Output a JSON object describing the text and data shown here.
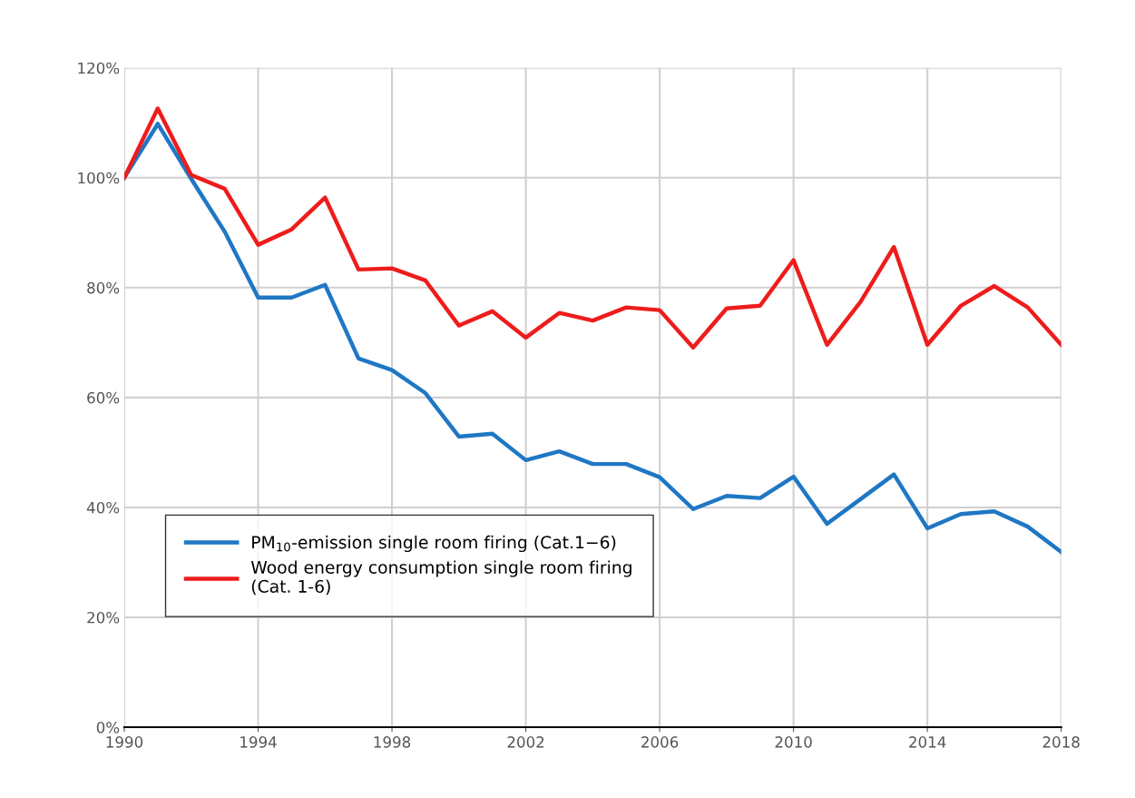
{
  "chart_data": {
    "type": "line",
    "x": [
      1990,
      1991,
      1992,
      1993,
      1994,
      1995,
      1996,
      1997,
      1998,
      1999,
      2000,
      2001,
      2002,
      2003,
      2004,
      2005,
      2006,
      2007,
      2008,
      2009,
      2010,
      2011,
      2012,
      2013,
      2014,
      2015,
      2016,
      2017,
      2018
    ],
    "series": [
      {
        "name": "PM$_{10}$-emission single room firing (Cat.1−6)",
        "color": "#1f77c4",
        "values": [
          100,
          109.8,
          99.8,
          90.2,
          78.2,
          78.2,
          80.5,
          67.1,
          65.0,
          60.8,
          52.9,
          53.4,
          48.6,
          50.2,
          47.9,
          47.9,
          45.5,
          39.7,
          42.1,
          41.7,
          45.6,
          37.0,
          41.5,
          46.0,
          36.2,
          38.8,
          39.3,
          36.5,
          31.9
        ]
      },
      {
        "name": "Wood energy consumption single room firing\n(Cat. 1-6)",
        "color": "#ee1c1c",
        "values": [
          100,
          112.6,
          100.5,
          98.0,
          87.8,
          90.6,
          96.4,
          83.3,
          83.5,
          81.3,
          73.1,
          75.7,
          70.9,
          75.4,
          74.0,
          76.4,
          75.9,
          69.1,
          76.2,
          76.7,
          85.0,
          69.6,
          77.4,
          87.4,
          69.6,
          76.7,
          80.3,
          76.4,
          69.6
        ]
      }
    ],
    "xlim": [
      1990,
      2018
    ],
    "xticks": [
      1990,
      1994,
      1998,
      2002,
      2006,
      2010,
      2014,
      2018
    ],
    "ylim": [
      0,
      120
    ],
    "yticks": [
      {
        "value": 0,
        "label": "0%"
      },
      {
        "value": 20,
        "label": "20%"
      },
      {
        "value": 40,
        "label": "40%"
      },
      {
        "value": 60,
        "label": "60%"
      },
      {
        "value": 80,
        "label": "80%"
      },
      {
        "value": 100,
        "label": "100%"
      },
      {
        "value": 120,
        "label": "120%"
      }
    ],
    "grid": true,
    "legend": "bottom left",
    "marker": "none",
    "line_style": "solid"
  }
}
